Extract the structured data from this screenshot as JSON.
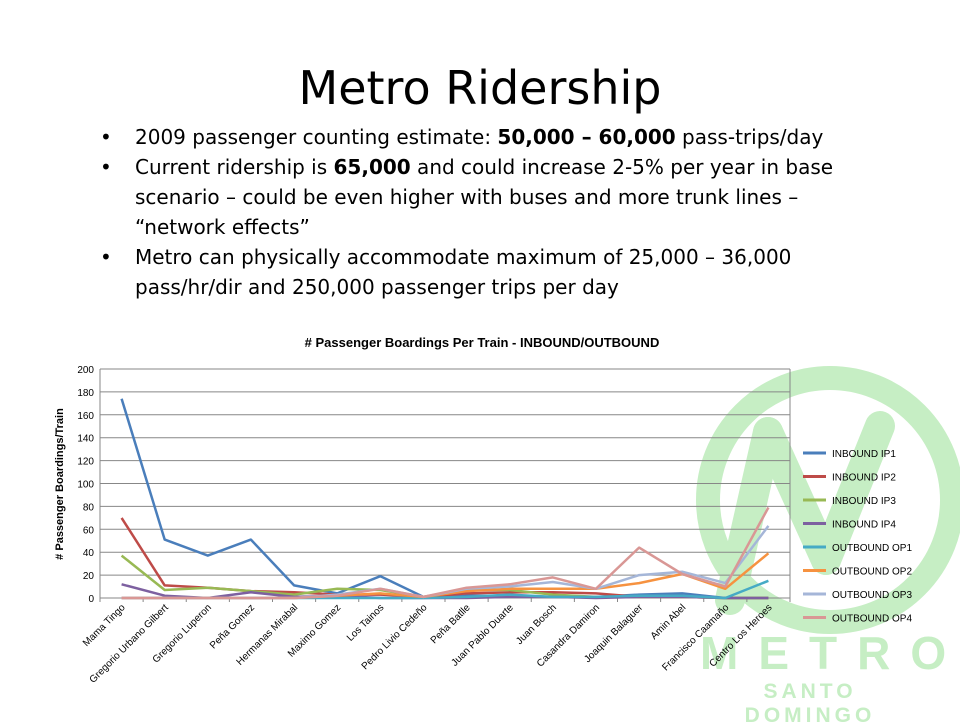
{
  "slide": {
    "title": "Metro Ridership",
    "bullets": [
      {
        "parts": [
          {
            "t": "2009 passenger counting estimate: ",
            "b": false
          },
          {
            "t": "50,000 – 60,000",
            "b": true
          },
          {
            "t": " pass-trips/day",
            "b": false
          }
        ]
      },
      {
        "parts": [
          {
            "t": "Current ridership is ",
            "b": false
          },
          {
            "t": "65,000",
            "b": true
          },
          {
            "t": " and could increase 2-5% per year in base scenario – could be even higher with buses and more trunk lines – “network effects”",
            "b": false
          }
        ]
      },
      {
        "parts": [
          {
            "t": "Metro can physically accommodate maximum of 25,000 – 36,000 pass/hr/dir and 250,000 passenger trips per day",
            "b": false
          }
        ]
      }
    ]
  },
  "logo": {
    "word": "METRO",
    "sub": "SANTO DOMINGO",
    "color": "#c6eec4"
  },
  "chart_data": {
    "type": "line",
    "title": "# Passenger Boardings Per Train - INBOUND/OUTBOUND",
    "xlabel": "",
    "ylabel": "# Passenger Boardings/Train",
    "ylim": [
      0,
      200
    ],
    "yticks": [
      0,
      20,
      40,
      60,
      80,
      100,
      120,
      140,
      160,
      180,
      200
    ],
    "grid": true,
    "legend": "right",
    "categories": [
      "Mama Tingo",
      "Gregorio Urbano Gilbert",
      "Gregorio Luperon",
      "Peña Gomez",
      "Hermanas Mirabal",
      "Maximo Gomez",
      "Los Tainos",
      "Pedro Livio Cedeño",
      "Peña Batlle",
      "Juan Pablo Duarte",
      "Juan Bosch",
      "Casandra Damiron",
      "Joaquin Balaguer",
      "Amin Abel",
      "Francisco Caamaño",
      "Centro Los Heroes"
    ],
    "series": [
      {
        "name": "INBOUND IP1",
        "color": "#4a7ebb",
        "values": [
          174,
          51,
          37,
          51,
          11,
          4,
          19,
          1,
          2,
          2,
          1,
          1,
          3,
          4,
          0,
          0
        ]
      },
      {
        "name": "INBOUND IP2",
        "color": "#be4b48",
        "values": [
          70,
          11,
          9,
          6,
          5,
          3,
          3,
          1,
          4,
          5,
          5,
          4,
          1,
          1,
          0,
          0
        ]
      },
      {
        "name": "INBOUND IP3",
        "color": "#98b954",
        "values": [
          37,
          7,
          9,
          6,
          3,
          8,
          7,
          1,
          7,
          7,
          3,
          1,
          1,
          1,
          0,
          0
        ]
      },
      {
        "name": "INBOUND IP4",
        "color": "#7d60a0",
        "values": [
          12,
          2,
          0,
          5,
          1,
          2,
          0,
          0,
          0,
          1,
          1,
          0,
          1,
          1,
          0,
          0
        ]
      },
      {
        "name": "OUTBOUND OP1",
        "color": "#46aac5",
        "values": [
          0,
          0,
          0,
          0,
          0,
          0,
          0,
          0,
          1,
          3,
          1,
          1,
          2,
          2,
          0,
          15
        ]
      },
      {
        "name": "OUTBOUND OP2",
        "color": "#f69240",
        "values": [
          0,
          0,
          0,
          0,
          0,
          2,
          4,
          1,
          6,
          8,
          8,
          8,
          13,
          21,
          8,
          39
        ]
      },
      {
        "name": "OUTBOUND OP3",
        "color": "#a5b6d8",
        "values": [
          0,
          0,
          0,
          0,
          0,
          3,
          8,
          1,
          8,
          10,
          14,
          8,
          20,
          23,
          13,
          63
        ]
      },
      {
        "name": "OUTBOUND OP4",
        "color": "#d99795",
        "values": [
          0,
          0,
          0,
          0,
          0,
          2,
          8,
          1,
          9,
          12,
          18,
          8,
          44,
          21,
          10,
          79
        ]
      }
    ]
  }
}
